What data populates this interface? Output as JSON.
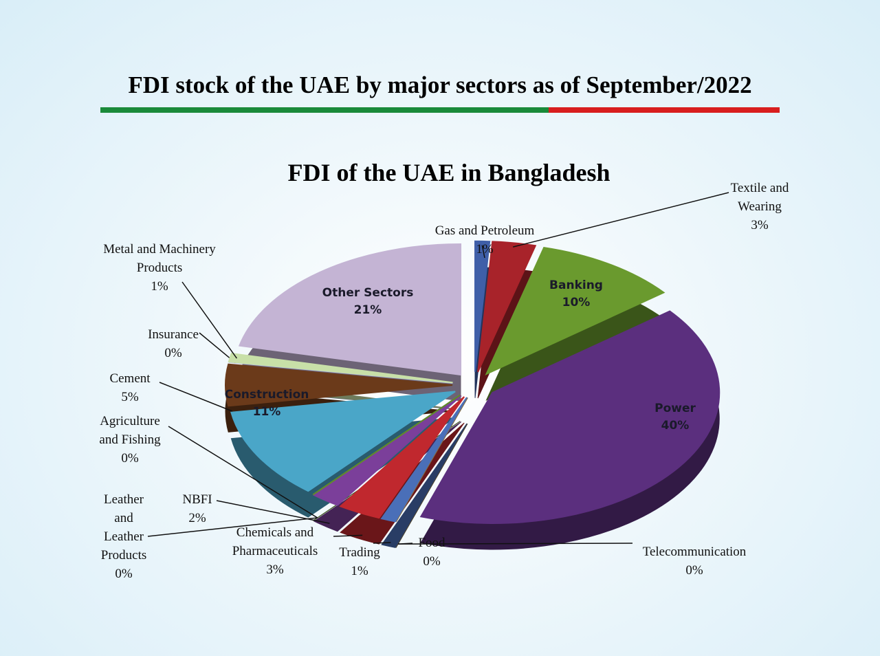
{
  "header": {
    "title": "FDI stock of the UAE by major sectors as of September/2022"
  },
  "chart_data": {
    "type": "pie",
    "title": "FDI of the UAE in Bangladesh",
    "categories": [
      "Gas and Petroleum",
      "Textile and Wearing",
      "Banking",
      "Power",
      "Telecommunication",
      "Food",
      "Trading",
      "Chemicals and Pharmaceuticals",
      "NBFI",
      "Leather and Leather Products",
      "Agriculture and Fishing",
      "Construction",
      "Cement",
      "Insurance",
      "Metal and Machinery Products",
      "Other Sectors"
    ],
    "values": [
      1,
      3,
      10,
      40,
      0,
      0,
      1,
      3,
      2,
      0,
      0,
      11,
      5,
      0,
      1,
      21
    ],
    "value_labels": [
      "1%",
      "3%",
      "10%",
      "40%",
      "0%",
      "0%",
      "1%",
      "3%",
      "2%",
      "0%",
      "0%",
      "11%",
      "5%",
      "0%",
      "1%",
      "21%"
    ],
    "colors": [
      "#3f5fa8",
      "#a8232a",
      "#6a9a2e",
      "#5b2f7e",
      "#2e7f97",
      "#8a6a3a",
      "#4a6fb8",
      "#c0282e",
      "#7b3f9a",
      "#7a9a3a",
      "#5f8a2a",
      "#4aa6c8",
      "#6b3a1a",
      "#b8c0e0",
      "#c8e0a8",
      "#c4b4d4"
    ]
  }
}
